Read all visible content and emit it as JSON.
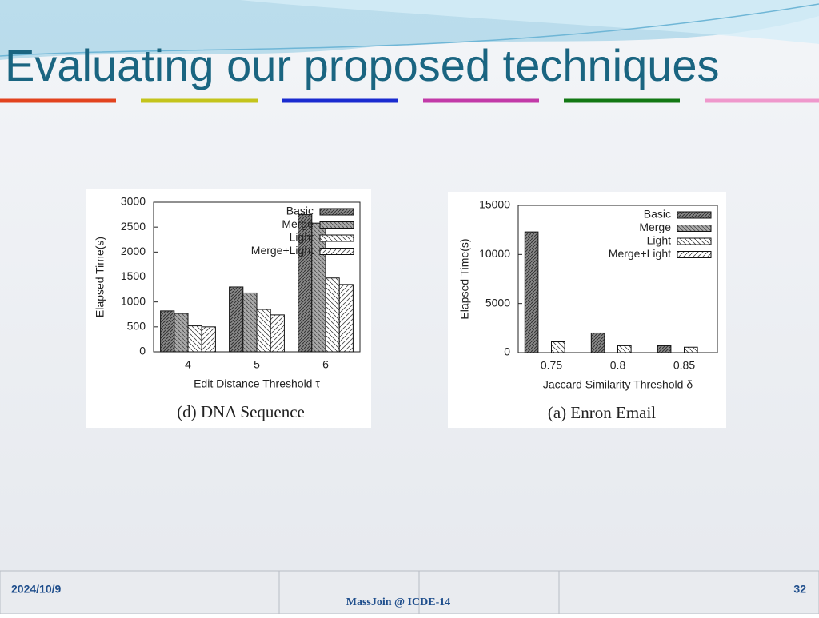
{
  "title": "Evaluating our proposed techniques",
  "footer": {
    "date": "2024/10/9",
    "center": "MassJoin @ ICDE-14",
    "page": "32"
  },
  "chart_data": [
    {
      "type": "bar",
      "caption": "(d)  DNA Sequence",
      "x_label": "Edit Distance Threshold τ",
      "y_label": "Elapsed Time(s)",
      "categories": [
        "4",
        "5",
        "6"
      ],
      "series": [
        {
          "name": "Basic",
          "values": [
            820,
            1300,
            2750
          ]
        },
        {
          "name": "Merge",
          "values": [
            770,
            1180,
            2580
          ]
        },
        {
          "name": "Light",
          "values": [
            520,
            850,
            1480
          ]
        },
        {
          "name": "Merge+Light",
          "values": [
            500,
            740,
            1350
          ]
        }
      ],
      "ylim": [
        0,
        3000
      ],
      "yticks": [
        0,
        500,
        1000,
        1500,
        2000,
        2500,
        3000
      ],
      "legend": "upper right"
    },
    {
      "type": "bar",
      "caption": "(a)  Enron Email",
      "x_label": "Jaccard Similarity Threshold δ",
      "y_label": "Elapsed Time(s)",
      "categories": [
        "0.75",
        "0.8",
        "0.85"
      ],
      "series": [
        {
          "name": "Basic",
          "values": [
            12300,
            2000,
            700
          ]
        },
        {
          "name": "Merge",
          "values": [
            null,
            null,
            null
          ]
        },
        {
          "name": "Light",
          "values": [
            1100,
            700,
            550
          ]
        },
        {
          "name": "Merge+Light",
          "values": [
            null,
            null,
            null
          ]
        }
      ],
      "ylim": [
        0,
        15000
      ],
      "yticks": [
        0,
        5000,
        10000,
        15000
      ],
      "legend": "upper right"
    }
  ]
}
